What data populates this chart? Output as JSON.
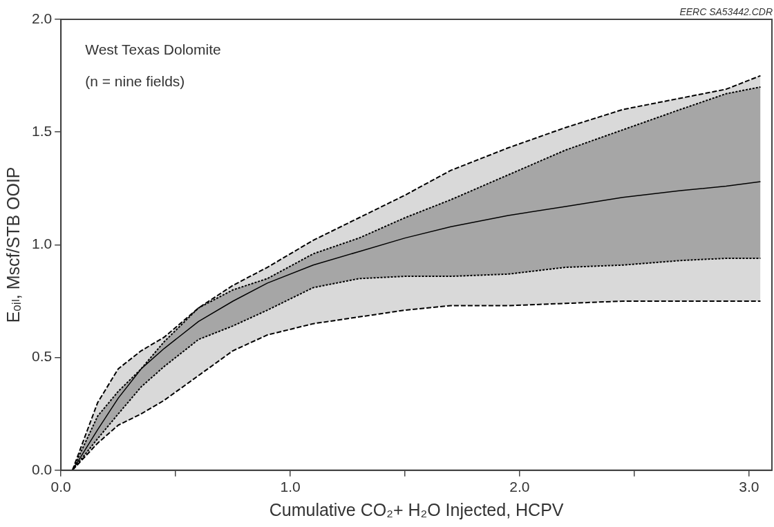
{
  "chart_data": {
    "type": "line",
    "xlabel": "Cumulative CO₂+ H₂O Injected, HCPV",
    "ylabel": "Eₒᵢₗ, Mscf/STB OOIP",
    "x": [
      0.05,
      0.16,
      0.25,
      0.35,
      0.45,
      0.6,
      0.75,
      0.9,
      1.1,
      1.3,
      1.5,
      1.7,
      1.95,
      2.2,
      2.45,
      2.7,
      2.9,
      3.05
    ],
    "series": [
      {
        "color": "#000000",
        "line_style": "solid",
        "values": [
          0,
          0.18,
          0.32,
          0.45,
          0.54,
          0.66,
          0.75,
          0.83,
          0.91,
          0.97,
          1.03,
          1.08,
          1.13,
          1.17,
          1.21,
          1.24,
          1.26,
          1.28
        ],
        "lower": [
          0,
          0.14,
          0.25,
          0.37,
          0.46,
          0.58,
          0.64,
          0.71,
          0.81,
          0.85,
          0.86,
          0.86,
          0.87,
          0.9,
          0.91,
          0.93,
          0.94,
          0.94
        ],
        "upper": [
          0,
          0.24,
          0.35,
          0.45,
          0.57,
          0.72,
          0.8,
          0.85,
          0.96,
          1.03,
          1.12,
          1.2,
          1.31,
          1.42,
          1.51,
          1.6,
          1.67,
          1.7
        ]
      },
      {
        "color": "#000000",
        "line_style": "dotted",
        "values": [
          0,
          0.24,
          0.35,
          0.45,
          0.57,
          0.72,
          0.8,
          0.85,
          0.96,
          1.03,
          1.12,
          1.2,
          1.31,
          1.42,
          1.51,
          1.6,
          1.67,
          1.7
        ]
      },
      {
        "color": "#000000",
        "line_style": "dotted",
        "values": [
          0,
          0.14,
          0.25,
          0.37,
          0.46,
          0.58,
          0.64,
          0.71,
          0.81,
          0.85,
          0.86,
          0.86,
          0.87,
          0.9,
          0.91,
          0.93,
          0.94,
          0.94
        ]
      },
      {
        "color": "#000000",
        "line_style": "dashed",
        "values": [
          0,
          0.3,
          0.45,
          0.53,
          0.59,
          0.72,
          0.82,
          0.9,
          1.02,
          1.12,
          1.22,
          1.33,
          1.43,
          1.52,
          1.6,
          1.65,
          1.69,
          1.75
        ]
      },
      {
        "color": "#000000",
        "line_style": "dashed",
        "values": [
          0,
          0.12,
          0.2,
          0.25,
          0.31,
          0.42,
          0.53,
          0.6,
          0.65,
          0.68,
          0.71,
          0.73,
          0.73,
          0.74,
          0.75,
          0.75,
          0.75,
          0.75
        ]
      }
    ],
    "xlim": [
      0,
      3.1
    ],
    "xticks": [
      {
        "value": 0,
        "label": "0.0"
      },
      {
        "value": 0.5,
        "label": null
      },
      {
        "value": 1,
        "label": "1.0"
      },
      {
        "value": 1.5,
        "label": null
      },
      {
        "value": 2,
        "label": "2.0"
      },
      {
        "value": 2.5,
        "label": null
      },
      {
        "value": 3,
        "label": "3.0"
      }
    ],
    "ylim": [
      0,
      2
    ],
    "yticks": [
      {
        "value": 0,
        "label": "0.0"
      },
      {
        "value": 0.5,
        "label": "0.5"
      },
      {
        "value": 1,
        "label": "1.0"
      },
      {
        "value": 1.5,
        "label": "1.5"
      },
      {
        "value": 2,
        "label": "2.0"
      }
    ],
    "grid": false,
    "legend": false,
    "marker": "none",
    "annotations": [
      "West Texas Dolomite",
      "(n = nine fields)",
      "EERC SA53442.CDR"
    ]
  }
}
